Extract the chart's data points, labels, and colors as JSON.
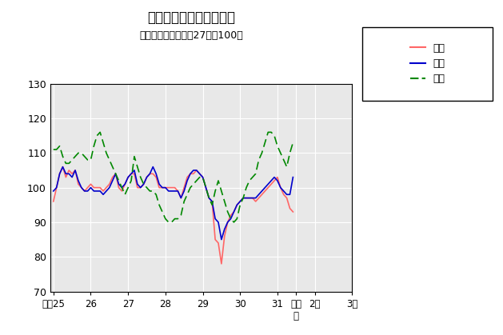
{
  "title": "鳥取県鉱工業指数の推移",
  "subtitle": "（季節調整済、平成27年＝100）",
  "ylim": [
    70,
    130
  ],
  "yticks": [
    70,
    80,
    90,
    100,
    110,
    120,
    130
  ],
  "legend_labels": [
    "生産",
    "出荷",
    "在庫"
  ],
  "line_colors": [
    "#FF6666",
    "#0000CC",
    "#008800"
  ],
  "bg_color": "#E8E8E8",
  "x_tick_labels": [
    "平成25",
    "26",
    "27",
    "28",
    "29",
    "30",
    "31",
    "令和\n元",
    "2年",
    "3年"
  ],
  "x_tick_positions": [
    0,
    12,
    24,
    36,
    48,
    60,
    72,
    78,
    84,
    96
  ],
  "production": [
    96,
    100,
    104,
    106,
    103,
    105,
    104,
    105,
    101,
    100,
    99,
    100,
    101,
    100,
    100,
    100,
    99,
    100,
    101,
    103,
    104,
    100,
    99,
    101,
    103,
    104,
    104,
    100,
    100,
    101,
    103,
    104,
    104,
    103,
    100,
    100,
    100,
    100,
    100,
    100,
    99,
    97,
    100,
    103,
    104,
    104,
    105,
    104,
    103,
    100,
    97,
    96,
    85,
    84,
    78,
    86,
    90,
    92,
    93,
    95,
    96,
    97,
    97,
    97,
    97,
    96,
    97,
    98,
    99,
    100,
    101,
    102,
    103,
    100,
    98,
    97,
    94,
    93
  ],
  "shipment": [
    99,
    100,
    104,
    106,
    104,
    104,
    103,
    105,
    102,
    100,
    99,
    99,
    100,
    99,
    99,
    99,
    98,
    99,
    100,
    102,
    104,
    101,
    100,
    101,
    103,
    104,
    105,
    101,
    100,
    101,
    103,
    104,
    106,
    104,
    101,
    100,
    100,
    99,
    99,
    99,
    99,
    97,
    99,
    102,
    104,
    105,
    105,
    104,
    103,
    100,
    97,
    96,
    91,
    90,
    85,
    88,
    90,
    91,
    93,
    95,
    96,
    97,
    97,
    97,
    97,
    97,
    98,
    99,
    100,
    101,
    102,
    103,
    102,
    100,
    99,
    98,
    98,
    103
  ],
  "inventory": [
    111,
    111,
    112,
    109,
    107,
    107,
    108,
    109,
    110,
    110,
    109,
    108,
    108,
    112,
    115,
    116,
    113,
    110,
    108,
    106,
    104,
    102,
    100,
    98,
    100,
    102,
    109,
    106,
    103,
    101,
    100,
    99,
    99,
    98,
    95,
    93,
    91,
    90,
    90,
    91,
    91,
    92,
    96,
    98,
    100,
    101,
    102,
    103,
    103,
    100,
    97,
    95,
    99,
    102,
    99,
    96,
    93,
    91,
    90,
    91,
    95,
    97,
    100,
    102,
    103,
    104,
    108,
    110,
    113,
    116,
    116,
    115,
    112,
    110,
    108,
    106,
    110,
    113
  ]
}
